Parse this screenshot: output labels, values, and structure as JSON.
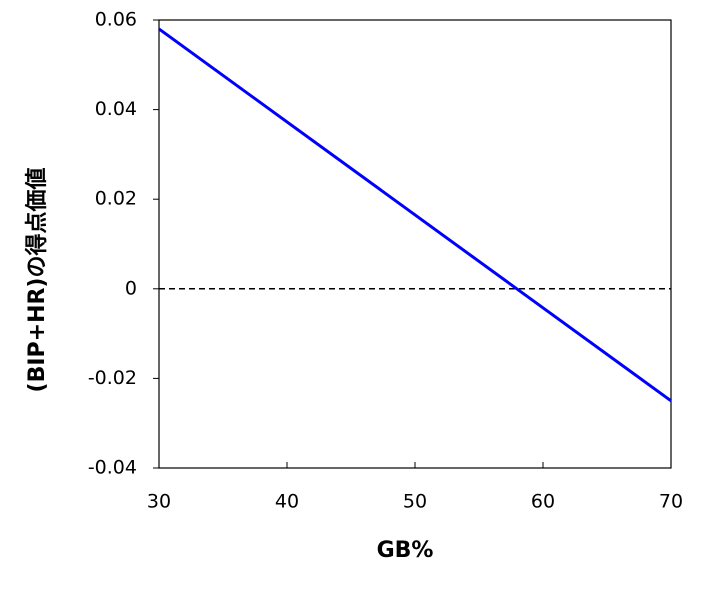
{
  "chart_data": {
    "type": "line",
    "x_label": "GB%",
    "y_label": "(BIP+HR)の得点価値",
    "x": [
      30,
      70
    ],
    "series": [
      {
        "color": "#0000ff",
        "values": [
          0.058,
          -0.025
        ]
      }
    ],
    "xlim": [
      30,
      70
    ],
    "xticks": [
      30,
      40,
      50,
      60,
      70
    ],
    "ylim": [
      -0.04,
      0.06
    ],
    "yticks": [
      -0.04,
      -0.02,
      0,
      0.02,
      0.04,
      0.06
    ],
    "reference_line": 0,
    "grid": false
  }
}
